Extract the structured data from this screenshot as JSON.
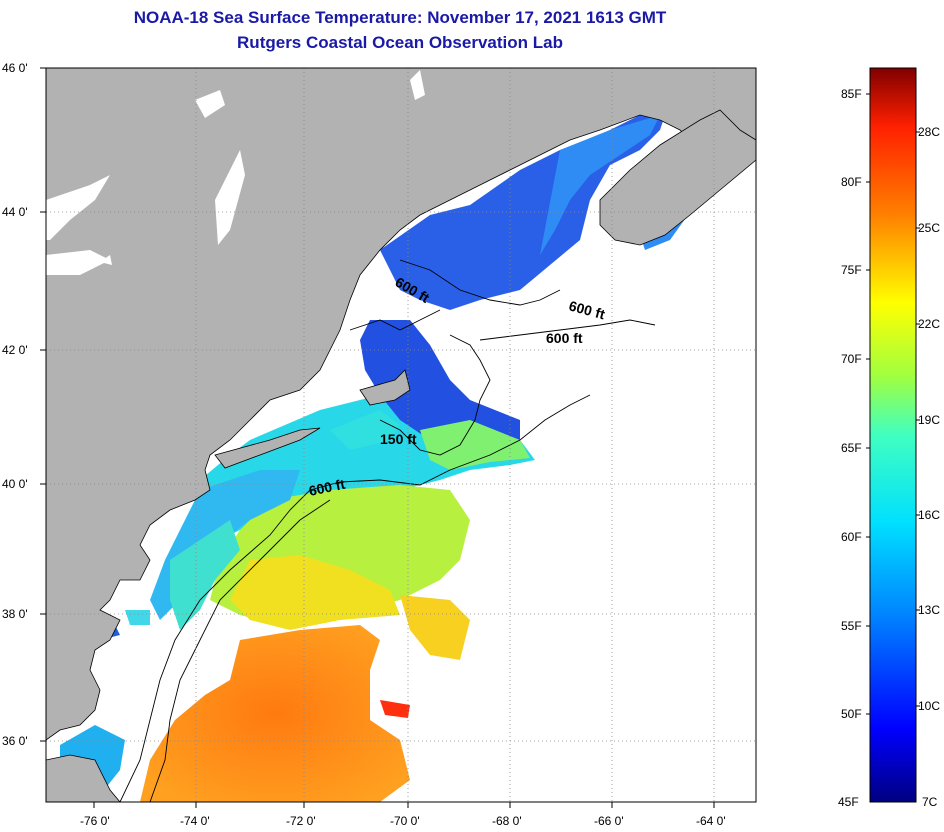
{
  "title": {
    "line1": "NOAA-18 Sea Surface Temperature:  November 17, 2021 1613 GMT",
    "line2": "Rutgers Coastal Ocean Observation Lab"
  },
  "map": {
    "lat_labels": [
      "46 0'",
      "44 0'",
      "42 0'",
      "40 0'",
      "38 0'",
      "36 0'"
    ],
    "lon_labels": [
      "-76 0'",
      "-74 0'",
      "-72 0'",
      "-70 0'",
      "-68 0'",
      "-66 0'",
      "-64 0'"
    ],
    "contour_labels": [
      "600 ft",
      "600 ft",
      "600 ft",
      "150 ft",
      "600 ft"
    ],
    "land_color": "#b2b2b2",
    "cloud_color": "#ffffff"
  },
  "colorbar": {
    "f_labels": [
      "85F",
      "80F",
      "75F",
      "70F",
      "65F",
      "60F",
      "55F",
      "50F",
      "45F"
    ],
    "c_labels": [
      "28C",
      "25C",
      "22C",
      "19C",
      "16C",
      "13C",
      "10C",
      "7C"
    ],
    "stops": [
      "#000080",
      "#0000ff",
      "#0080ff",
      "#00e0ff",
      "#40ffc0",
      "#a0ff40",
      "#ffff00",
      "#ff8000",
      "#ff2000",
      "#800000"
    ]
  }
}
